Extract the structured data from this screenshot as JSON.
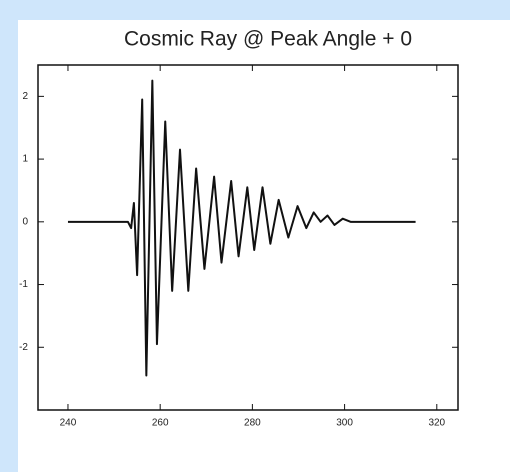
{
  "chart_data": {
    "type": "line",
    "title": "Cosmic Ray @ Peak Angle + 0",
    "x": [
      240,
      253.0,
      253.7,
      254.3,
      255.0,
      256.1,
      257.0,
      258.3,
      259.3,
      261.1,
      262.6,
      264.3,
      266.1,
      267.8,
      269.6,
      271.7,
      273.3,
      275.4,
      277.0,
      278.9,
      280.4,
      282.2,
      283.9,
      285.7,
      287.8,
      289.8,
      291.7,
      293.3,
      294.8,
      296.3,
      297.8,
      299.6,
      301.3,
      315.4
    ],
    "series": [
      {
        "color": "#111111",
        "values": [
          0,
          0,
          -0.1,
          0.3,
          -0.85,
          1.95,
          -2.45,
          2.25,
          -1.95,
          1.6,
          -1.1,
          1.15,
          -1.1,
          0.85,
          -0.75,
          0.72,
          -0.65,
          0.65,
          -0.55,
          0.55,
          -0.45,
          0.55,
          -0.35,
          0.35,
          -0.25,
          0.25,
          -0.1,
          0.15,
          0,
          0.1,
          -0.05,
          0.05,
          0,
          0
        ]
      }
    ],
    "xlim": [
      233.5,
      324.6
    ],
    "xticks": [
      240,
      260,
      280,
      300,
      320
    ],
    "ylim": [
      -3,
      2.5
    ],
    "yticks": [
      2,
      1,
      0,
      -1,
      -2
    ]
  }
}
